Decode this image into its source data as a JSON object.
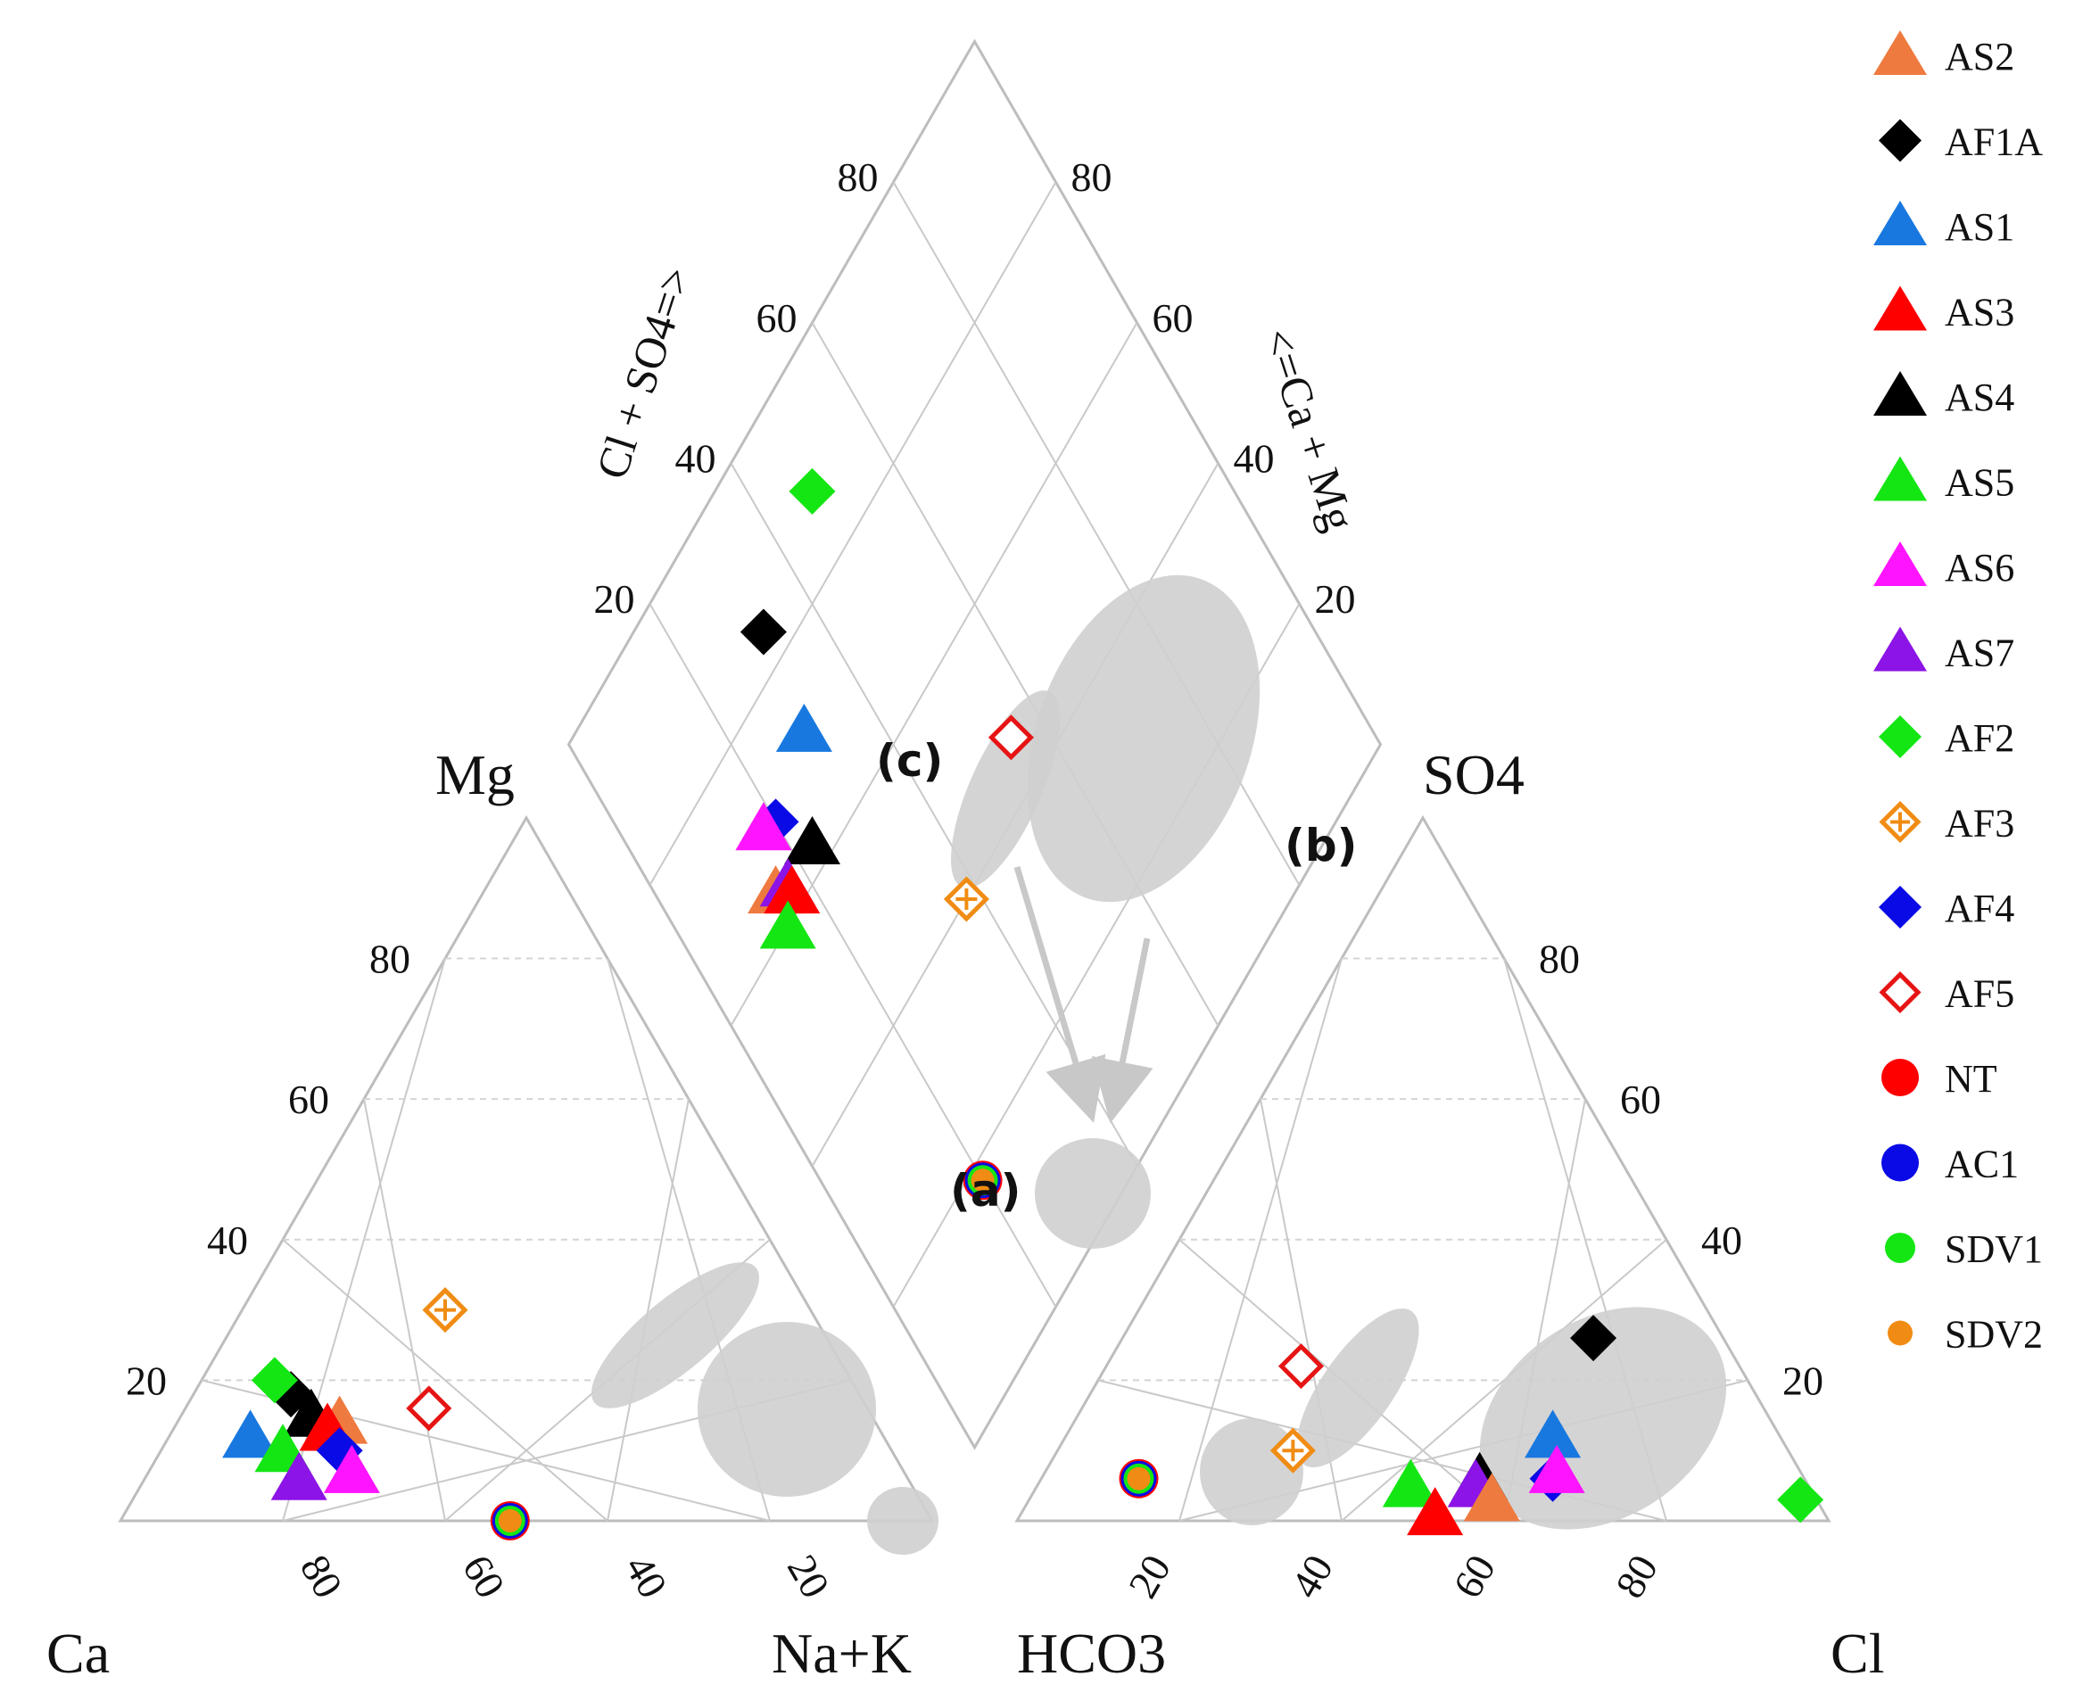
{
  "chart_data": {
    "type": "scatter",
    "subtype": "piper-diagram",
    "axis_labels": {
      "ca": "Ca",
      "na_k": "Na+K",
      "mg": "Mg",
      "hco3": "HCO3",
      "cl": "Cl",
      "so4": "SO4",
      "cl_so4": "Cl + SO4=>",
      "ca_mg": "<=Ca + Mg"
    },
    "ticks": [
      "20",
      "40",
      "60",
      "80"
    ],
    "group_labels": [
      "(a)",
      "(b)",
      "(c)"
    ],
    "legend": [
      {
        "name": "AS2",
        "marker": "triangle",
        "color": "#ef7a3f"
      },
      {
        "name": "AF1A",
        "marker": "diamond",
        "color": "#000000"
      },
      {
        "name": "AS1",
        "marker": "triangle",
        "color": "#1878e0"
      },
      {
        "name": "AS3",
        "marker": "triangle",
        "color": "#ff0000"
      },
      {
        "name": "AS4",
        "marker": "triangle",
        "color": "#000000"
      },
      {
        "name": "AS5",
        "marker": "triangle",
        "color": "#14e614"
      },
      {
        "name": "AS6",
        "marker": "triangle",
        "color": "#ff14ff"
      },
      {
        "name": "AS7",
        "marker": "triangle",
        "color": "#8c14e6"
      },
      {
        "name": "AF2",
        "marker": "diamond",
        "color": "#14e614"
      },
      {
        "name": "AF3",
        "marker": "diamond-cross",
        "color": "#f08c14"
      },
      {
        "name": "AF4",
        "marker": "diamond",
        "color": "#0a0ae6"
      },
      {
        "name": "AF5",
        "marker": "diamond-open",
        "color": "#e61414"
      },
      {
        "name": "NT",
        "marker": "circle",
        "color": "#ff0000"
      },
      {
        "name": "AC1",
        "marker": "circle",
        "color": "#0a0ae6"
      },
      {
        "name": "SDV1",
        "marker": "circle",
        "color": "#14e614"
      },
      {
        "name": "SDV2",
        "marker": "circle",
        "color": "#f08c14"
      }
    ],
    "cation_points": [
      {
        "series": "AF5",
        "mg": 16,
        "na_k": 30
      },
      {
        "series": "AF3",
        "mg": 30,
        "na_k": 25
      },
      {
        "series": "AF1A",
        "mg": 18,
        "na_k": 12
      },
      {
        "series": "AF2",
        "mg": 20,
        "na_k": 9
      },
      {
        "series": "AS4",
        "mg": 15,
        "na_k": 16
      },
      {
        "series": "AS2",
        "mg": 14,
        "na_k": 20
      },
      {
        "series": "AS3",
        "mg": 13,
        "na_k": 19
      },
      {
        "series": "AS1",
        "mg": 12,
        "na_k": 10
      },
      {
        "series": "AF4",
        "mg": 10,
        "na_k": 22
      },
      {
        "series": "AS5",
        "mg": 10,
        "na_k": 15
      },
      {
        "series": "AS6",
        "mg": 7,
        "na_k": 25
      },
      {
        "series": "AS7",
        "mg": 6,
        "na_k": 19
      },
      {
        "series": "NT",
        "mg": 0,
        "na_k": 48
      },
      {
        "series": "AC1",
        "mg": 0,
        "na_k": 48
      },
      {
        "series": "SDV1",
        "mg": 0,
        "na_k": 48
      },
      {
        "series": "SDV2",
        "mg": 0,
        "na_k": 48
      }
    ],
    "anion_points": [
      {
        "series": "AF1A",
        "cl": 58,
        "so4": 26
      },
      {
        "series": "AF2",
        "cl": 95,
        "so4": 3
      },
      {
        "series": "AS1",
        "cl": 60,
        "so4": 12
      },
      {
        "series": "AF4",
        "cl": 63,
        "so4": 6
      },
      {
        "series": "AS6",
        "cl": 63,
        "so4": 7
      },
      {
        "series": "AS4",
        "cl": 54,
        "so4": 6
      },
      {
        "series": "AS7",
        "cl": 54,
        "so4": 5
      },
      {
        "series": "AS2",
        "cl": 57,
        "so4": 3
      },
      {
        "series": "AS5",
        "cl": 46,
        "so4": 5
      },
      {
        "series": "AS3",
        "cl": 51,
        "so4": 1
      },
      {
        "series": "AF5",
        "cl": 24,
        "so4": 22
      },
      {
        "series": "AF3",
        "cl": 29,
        "so4": 10
      },
      {
        "series": "NT",
        "cl": 12,
        "so4": 6
      },
      {
        "series": "AC1",
        "cl": 12,
        "so4": 6
      },
      {
        "series": "SDV1",
        "cl": 12,
        "so4": 6
      },
      {
        "series": "SDV2",
        "cl": 12,
        "so4": 6
      }
    ],
    "diamond_points": [
      {
        "series": "AF2",
        "cl_so4": 88,
        "na_k": 48
      },
      {
        "series": "AF1A",
        "cl_so4": 84,
        "na_k": 32
      },
      {
        "series": "AS1",
        "cl_so4": 72,
        "na_k": 30
      },
      {
        "series": "AF5",
        "cl_so4": 46,
        "na_k": 55
      },
      {
        "series": "AF3",
        "cl_so4": 40,
        "na_k": 38
      },
      {
        "series": "AS4",
        "cl_so4": 63,
        "na_k": 23
      },
      {
        "series": "AF4",
        "cl_so4": 69,
        "na_k": 20
      },
      {
        "series": "AS6",
        "cl_so4": 70,
        "na_k": 18
      },
      {
        "series": "AS2",
        "cl_so4": 64,
        "na_k": 15
      },
      {
        "series": "AS7",
        "cl_so4": 63,
        "na_k": 17
      },
      {
        "series": "AS3",
        "cl_so4": 62,
        "na_k": 17
      },
      {
        "series": "AS5",
        "cl_so4": 60,
        "na_k": 14
      },
      {
        "series": "NT",
        "cl_so4": 18,
        "na_k": 20
      },
      {
        "series": "AC1",
        "cl_so4": 18,
        "na_k": 20
      },
      {
        "series": "SDV1",
        "cl_so4": 18,
        "na_k": 20
      },
      {
        "series": "SDV2",
        "cl_so4": 18,
        "na_k": 20
      }
    ]
  }
}
